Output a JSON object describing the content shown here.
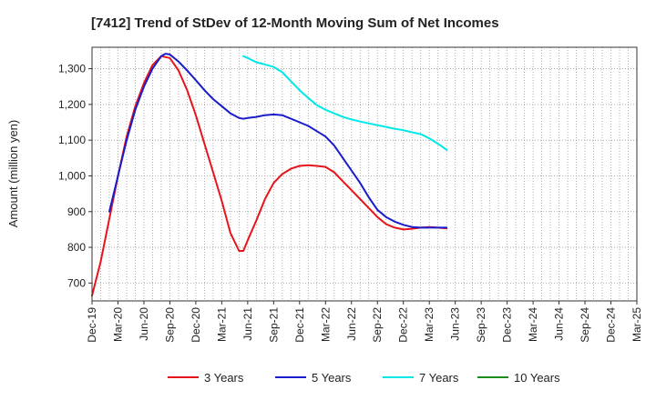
{
  "chart_data": {
    "type": "line",
    "title": "[7412]  Trend of StDev of 12-Month Moving Sum of Net Incomes",
    "ylabel": "Amount (million yen)",
    "xlabel": "",
    "ylim": [
      650,
      1360
    ],
    "yticks": [
      700,
      800,
      900,
      1000,
      1100,
      1200,
      1300
    ],
    "ytick_labels": [
      "700",
      "800",
      "900",
      "1,000",
      "1,100",
      "1,200",
      "1,300"
    ],
    "xtick_labels": [
      "Dec-19",
      "Mar-20",
      "Jun-20",
      "Sep-20",
      "Dec-20",
      "Mar-21",
      "Jun-21",
      "Sep-21",
      "Dec-21",
      "Mar-22",
      "Jun-22",
      "Sep-22",
      "Dec-22",
      "Mar-23",
      "Jun-23",
      "Sep-23",
      "Dec-23",
      "Mar-24",
      "Jun-24",
      "Sep-24",
      "Dec-24",
      "Mar-25"
    ],
    "grid": true,
    "legend_position": "bottom",
    "series": [
      {
        "name": "3 Years",
        "color": "#e8141b",
        "points": [
          [
            0,
            665
          ],
          [
            1,
            760
          ],
          [
            2,
            880
          ],
          [
            3,
            1000
          ],
          [
            4,
            1110
          ],
          [
            5,
            1195
          ],
          [
            6,
            1260
          ],
          [
            7,
            1310
          ],
          [
            8,
            1335
          ],
          [
            9,
            1330
          ],
          [
            10,
            1295
          ],
          [
            11,
            1240
          ],
          [
            12,
            1170
          ],
          [
            13,
            1090
          ],
          [
            14,
            1010
          ],
          [
            15,
            930
          ],
          [
            16,
            840
          ],
          [
            17,
            790
          ],
          [
            17.5,
            790
          ],
          [
            18,
            820
          ],
          [
            19,
            875
          ],
          [
            20,
            935
          ],
          [
            21,
            980
          ],
          [
            22,
            1005
          ],
          [
            23,
            1020
          ],
          [
            24,
            1028
          ],
          [
            25,
            1030
          ],
          [
            26,
            1028
          ],
          [
            27,
            1025
          ],
          [
            28,
            1010
          ],
          [
            29,
            985
          ],
          [
            30,
            960
          ],
          [
            31,
            935
          ],
          [
            32,
            910
          ],
          [
            33,
            885
          ],
          [
            34,
            865
          ],
          [
            35,
            855
          ],
          [
            36,
            850
          ],
          [
            37,
            852
          ],
          [
            38,
            855
          ],
          [
            39,
            857
          ],
          [
            40,
            855
          ],
          [
            41,
            853
          ]
        ]
      },
      {
        "name": "5 Years",
        "color": "#1a1ccc",
        "points": [
          [
            2,
            900
          ],
          [
            3,
            1000
          ],
          [
            4,
            1100
          ],
          [
            5,
            1185
          ],
          [
            6,
            1250
          ],
          [
            7,
            1300
          ],
          [
            8,
            1335
          ],
          [
            8.5,
            1342
          ],
          [
            9,
            1340
          ],
          [
            10,
            1320
          ],
          [
            11,
            1295
          ],
          [
            12,
            1268
          ],
          [
            13,
            1240
          ],
          [
            14,
            1215
          ],
          [
            15,
            1195
          ],
          [
            16,
            1175
          ],
          [
            17,
            1162
          ],
          [
            17.5,
            1160
          ],
          [
            18,
            1162
          ],
          [
            19,
            1165
          ],
          [
            20,
            1170
          ],
          [
            21,
            1172
          ],
          [
            22,
            1170
          ],
          [
            23,
            1160
          ],
          [
            24,
            1150
          ],
          [
            25,
            1140
          ],
          [
            26,
            1125
          ],
          [
            27,
            1110
          ],
          [
            28,
            1085
          ],
          [
            29,
            1050
          ],
          [
            30,
            1015
          ],
          [
            31,
            980
          ],
          [
            32,
            940
          ],
          [
            33,
            905
          ],
          [
            34,
            885
          ],
          [
            35,
            872
          ],
          [
            36,
            863
          ],
          [
            37,
            857
          ],
          [
            38,
            855
          ],
          [
            39,
            855
          ],
          [
            40,
            855
          ],
          [
            41,
            855
          ]
        ]
      },
      {
        "name": "7 Years",
        "color": "#00e8e8",
        "points": [
          [
            17.5,
            1335
          ],
          [
            18,
            1330
          ],
          [
            19,
            1318
          ],
          [
            20,
            1312
          ],
          [
            21,
            1305
          ],
          [
            22,
            1290
          ],
          [
            23,
            1265
          ],
          [
            24,
            1240
          ],
          [
            25,
            1218
          ],
          [
            26,
            1198
          ],
          [
            27,
            1185
          ],
          [
            28,
            1175
          ],
          [
            29,
            1165
          ],
          [
            30,
            1158
          ],
          [
            31,
            1152
          ],
          [
            32,
            1147
          ],
          [
            33,
            1142
          ],
          [
            34,
            1137
          ],
          [
            35,
            1132
          ],
          [
            36,
            1128
          ],
          [
            37,
            1122
          ],
          [
            38,
            1117
          ],
          [
            39,
            1105
          ],
          [
            40,
            1090
          ],
          [
            41,
            1073
          ]
        ]
      },
      {
        "name": "10 Years",
        "color": "#1a8c1a",
        "points": []
      }
    ]
  }
}
